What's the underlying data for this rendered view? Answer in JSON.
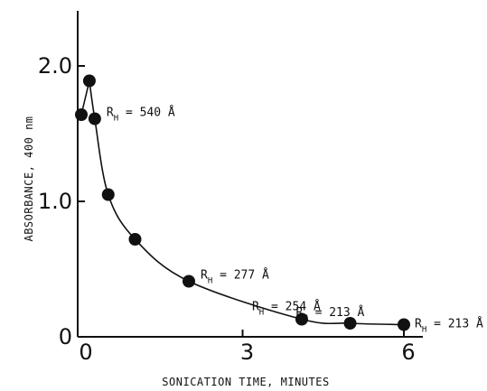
{
  "chart_data": {
    "type": "scatter",
    "title": "",
    "xlabel": "SONICATION TIME, MINUTES",
    "ylabel": "ABSORBANCE, 400 nm",
    "xlim": [
      -0.1,
      6.3
    ],
    "ylim": [
      0,
      2.3
    ],
    "x_ticks": [
      0,
      3,
      6
    ],
    "x_tick_labels": [
      "0",
      "3",
      "6"
    ],
    "y_ticks": [
      0,
      1.0,
      2.0
    ],
    "y_tick_labels": [
      "0",
      "1.0",
      "2.0"
    ],
    "grid": false,
    "legend": "none",
    "series": [
      {
        "x": [
          0,
          0.15,
          0.25,
          0.5,
          1.0,
          2.0,
          4.1,
          5.0,
          6.0
        ],
        "y": [
          1.64,
          1.89,
          1.61,
          1.05,
          0.72,
          0.41,
          0.13,
          0.1,
          0.09
        ]
      }
    ],
    "annotations": [
      {
        "main": "R",
        "sub": "H",
        "text": " = 540 Å",
        "x": 0.25,
        "y": 1.61
      },
      {
        "main": "R",
        "sub": "H",
        "text": " = 277 Å",
        "x": 2.0,
        "y": 0.41
      },
      {
        "main": "R",
        "sub": "H",
        "text": " = 254 Å",
        "x": 4.1,
        "y": 0.13
      },
      {
        "main": "R",
        "sub": "H",
        "text": " = 213 Å",
        "x": 5.0,
        "y": 0.1
      },
      {
        "main": "R",
        "sub": "H",
        "text": " = 213 Å",
        "x": 6.0,
        "y": 0.09
      }
    ]
  }
}
